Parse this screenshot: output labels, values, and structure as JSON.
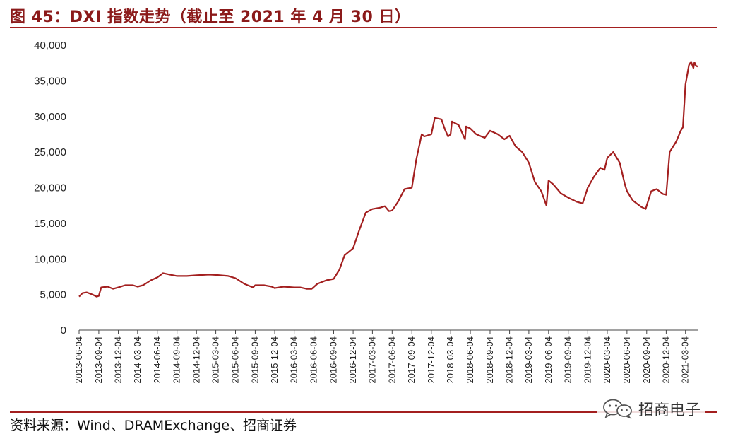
{
  "header": {
    "title": "图 45：DXI 指数走势（截止至 2021 年 4 月 30 日）"
  },
  "footer": {
    "source": "资料来源：Wind、DRAMExchange、招商证券",
    "watermark": "招商电子",
    "watermark_icon": "wechat-icon"
  },
  "colors": {
    "accent": "#a31f1f",
    "line": "#a31f1f",
    "axis": "#444444"
  },
  "chart_data": {
    "type": "line",
    "title": "",
    "xlabel": "",
    "ylabel": "",
    "ylim": [
      0,
      40000
    ],
    "yticks": [
      0,
      5000,
      10000,
      15000,
      20000,
      25000,
      30000,
      35000,
      40000
    ],
    "ytick_labels": [
      "0",
      "5,000",
      "10,000",
      "15,000",
      "20,000",
      "25,000",
      "30,000",
      "35,000",
      "40,000"
    ],
    "xlim": [
      "2013-06-04",
      "2021-04-30"
    ],
    "xtick_labels": [
      "2013-06-04",
      "2013-09-04",
      "2013-12-04",
      "2014-03-04",
      "2014-06-04",
      "2014-09-04",
      "2014-12-04",
      "2015-03-04",
      "2015-06-04",
      "2015-09-04",
      "2015-12-04",
      "2016-03-04",
      "2016-06-04",
      "2016-09-04",
      "2016-12-04",
      "2017-03-04",
      "2017-06-04",
      "2017-09-04",
      "2017-12-04",
      "2018-03-04",
      "2018-06-04",
      "2018-09-04",
      "2018-12-04",
      "2019-03-04",
      "2019-06-04",
      "2019-09-04",
      "2019-12-04",
      "2020-03-04",
      "2020-06-04",
      "2020-09-04",
      "2020-12-04",
      "2021-03-04"
    ],
    "grid": false,
    "legend": "none",
    "series": [
      {
        "points": [
          [
            "2013-06-04",
            4700
          ],
          [
            "2013-06-20",
            5200
          ],
          [
            "2013-07-10",
            5300
          ],
          [
            "2013-08-05",
            5000
          ],
          [
            "2013-08-25",
            4700
          ],
          [
            "2013-09-04",
            4800
          ],
          [
            "2013-09-15",
            6000
          ],
          [
            "2013-10-15",
            6100
          ],
          [
            "2013-11-10",
            5800
          ],
          [
            "2013-12-04",
            6000
          ],
          [
            "2014-01-05",
            6300
          ],
          [
            "2014-02-10",
            6300
          ],
          [
            "2014-03-04",
            6100
          ],
          [
            "2014-03-30",
            6300
          ],
          [
            "2014-05-05",
            7000
          ],
          [
            "2014-06-04",
            7400
          ],
          [
            "2014-07-01",
            8000
          ],
          [
            "2014-08-01",
            7800
          ],
          [
            "2014-09-04",
            7600
          ],
          [
            "2014-10-20",
            7600
          ],
          [
            "2014-12-04",
            7700
          ],
          [
            "2015-02-01",
            7800
          ],
          [
            "2015-03-04",
            7750
          ],
          [
            "2015-05-01",
            7600
          ],
          [
            "2015-06-04",
            7300
          ],
          [
            "2015-07-15",
            6500
          ],
          [
            "2015-08-25",
            6000
          ],
          [
            "2015-09-04",
            6300
          ],
          [
            "2015-10-15",
            6300
          ],
          [
            "2015-11-20",
            6100
          ],
          [
            "2015-12-04",
            5900
          ],
          [
            "2016-01-15",
            6100
          ],
          [
            "2016-03-04",
            6000
          ],
          [
            "2016-04-01",
            6000
          ],
          [
            "2016-05-01",
            5800
          ],
          [
            "2016-05-25",
            5800
          ],
          [
            "2016-06-20",
            6500
          ],
          [
            "2016-08-01",
            7000
          ],
          [
            "2016-09-04",
            7200
          ],
          [
            "2016-10-01",
            8500
          ],
          [
            "2016-10-25",
            10500
          ],
          [
            "2016-12-04",
            11500
          ],
          [
            "2017-01-01",
            14000
          ],
          [
            "2017-02-01",
            16500
          ],
          [
            "2017-03-04",
            17000
          ],
          [
            "2017-04-10",
            17200
          ],
          [
            "2017-05-01",
            17400
          ],
          [
            "2017-05-20",
            16700
          ],
          [
            "2017-06-04",
            16800
          ],
          [
            "2017-07-01",
            18000
          ],
          [
            "2017-08-01",
            19800
          ],
          [
            "2017-09-04",
            20000
          ],
          [
            "2017-09-25",
            24000
          ],
          [
            "2017-10-20",
            27500
          ],
          [
            "2017-11-01",
            27200
          ],
          [
            "2017-12-04",
            27500
          ],
          [
            "2017-12-20",
            29800
          ],
          [
            "2018-01-20",
            29600
          ],
          [
            "2018-02-05",
            28200
          ],
          [
            "2018-02-20",
            27200
          ],
          [
            "2018-03-04",
            27500
          ],
          [
            "2018-03-10",
            29300
          ],
          [
            "2018-04-10",
            28800
          ],
          [
            "2018-05-10",
            26800
          ],
          [
            "2018-05-15",
            28600
          ],
          [
            "2018-06-04",
            28300
          ],
          [
            "2018-07-01",
            27500
          ],
          [
            "2018-08-10",
            27000
          ],
          [
            "2018-09-04",
            28000
          ],
          [
            "2018-10-10",
            27500
          ],
          [
            "2018-11-10",
            26800
          ],
          [
            "2018-12-04",
            27300
          ],
          [
            "2019-01-01",
            25800
          ],
          [
            "2019-02-01",
            25000
          ],
          [
            "2019-03-04",
            23500
          ],
          [
            "2019-04-01",
            20800
          ],
          [
            "2019-05-01",
            19500
          ],
          [
            "2019-05-25",
            17500
          ],
          [
            "2019-06-04",
            21000
          ],
          [
            "2019-06-25",
            20500
          ],
          [
            "2019-08-01",
            19200
          ],
          [
            "2019-09-04",
            18600
          ],
          [
            "2019-10-15",
            18000
          ],
          [
            "2019-11-10",
            17800
          ],
          [
            "2019-12-04",
            20000
          ],
          [
            "2020-01-01",
            21500
          ],
          [
            "2020-02-01",
            22800
          ],
          [
            "2020-02-20",
            22500
          ],
          [
            "2020-03-04",
            24200
          ],
          [
            "2020-04-01",
            25000
          ],
          [
            "2020-05-01",
            23500
          ],
          [
            "2020-05-25",
            20500
          ],
          [
            "2020-06-04",
            19500
          ],
          [
            "2020-07-01",
            18200
          ],
          [
            "2020-08-10",
            17300
          ],
          [
            "2020-08-30",
            17000
          ],
          [
            "2020-09-04",
            17500
          ],
          [
            "2020-09-25",
            19500
          ],
          [
            "2020-10-20",
            19800
          ],
          [
            "2020-11-20",
            19100
          ],
          [
            "2020-12-04",
            19000
          ],
          [
            "2020-12-20",
            25000
          ],
          [
            "2021-01-20",
            26500
          ],
          [
            "2021-02-10",
            28000
          ],
          [
            "2021-02-20",
            28500
          ],
          [
            "2021-03-04",
            34500
          ],
          [
            "2021-03-20",
            37200
          ],
          [
            "2021-03-30",
            37700
          ],
          [
            "2021-04-10",
            36800
          ],
          [
            "2021-04-15",
            37600
          ],
          [
            "2021-04-22",
            37100
          ],
          [
            "2021-04-30",
            37000
          ]
        ]
      }
    ]
  }
}
